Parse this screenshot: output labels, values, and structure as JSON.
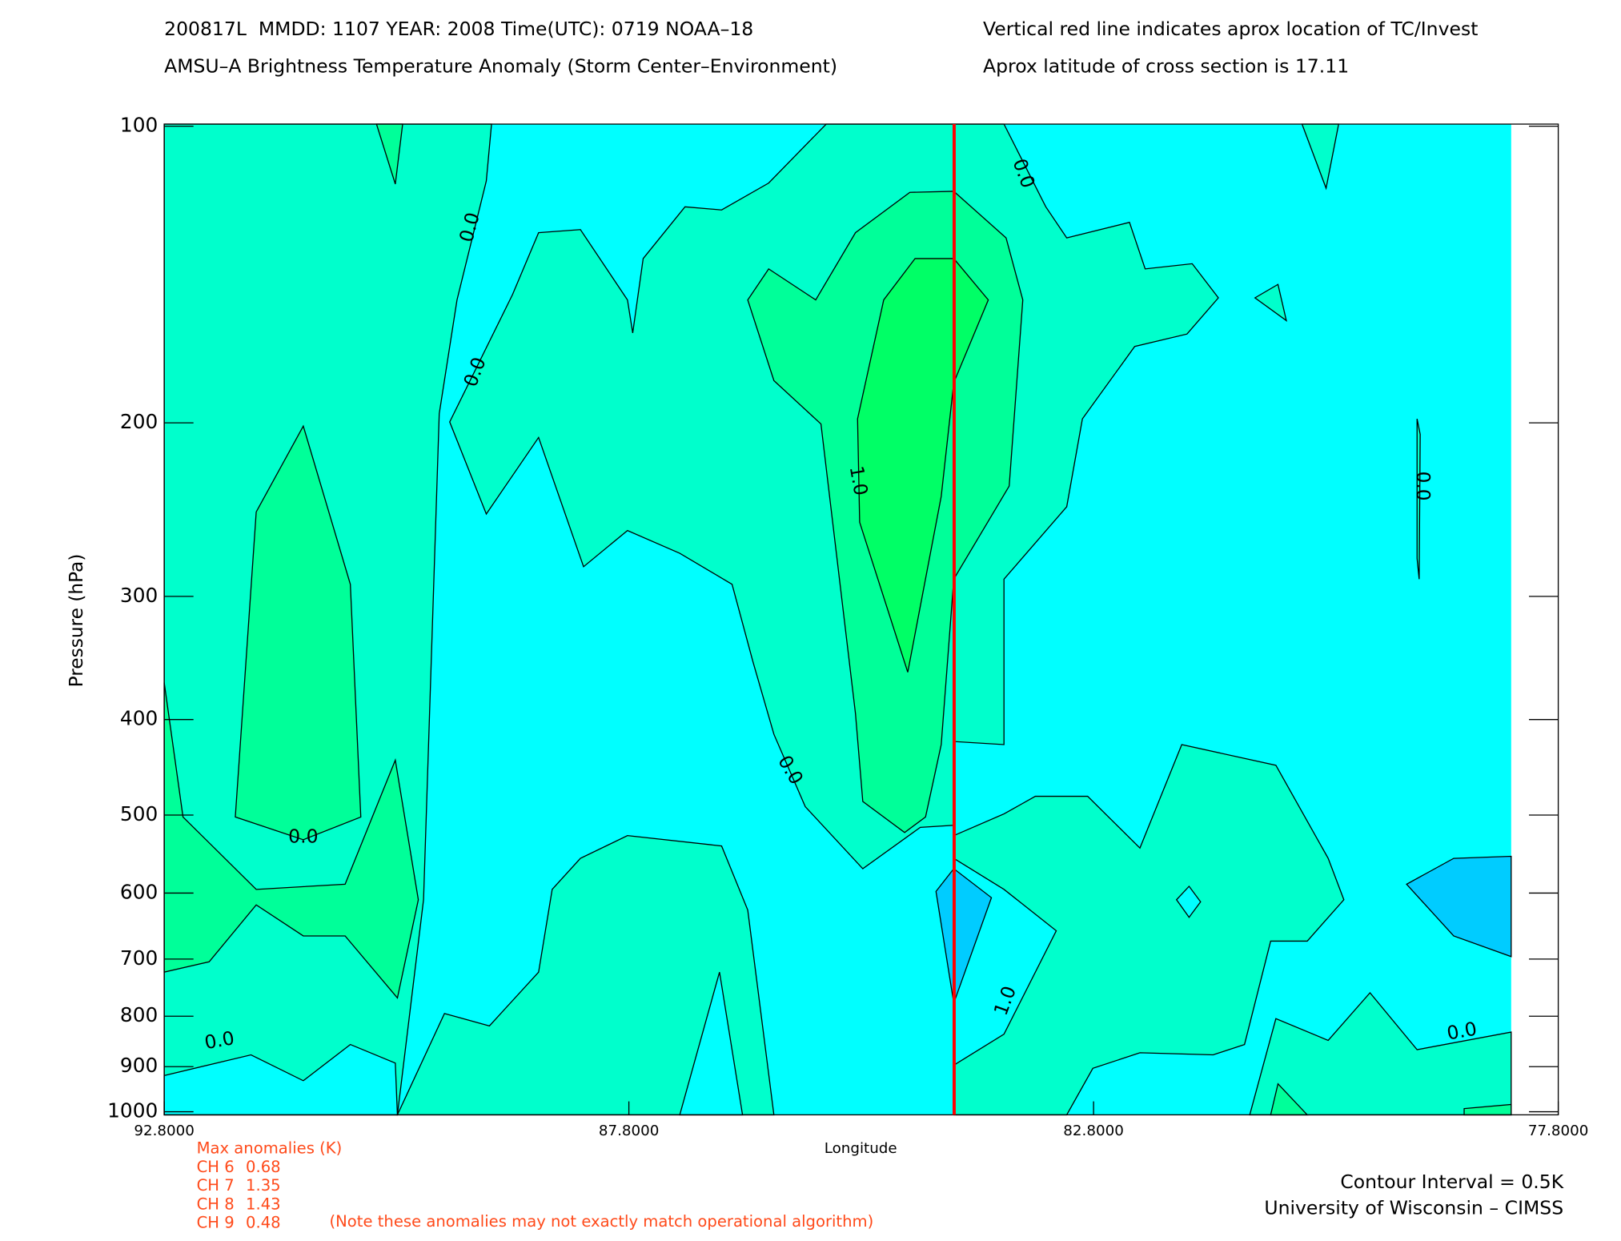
{
  "chart_data": {
    "type": "contour",
    "title": "200817L  MMDD: 1107 YEAR: 2008 Time(UTC): 0719 NOAA–18",
    "subtitle": "AMSU–A Brightness Temperature Anomaly (Storm Center–Environment)",
    "note_right_1": "Vertical red line indicates aprox location of TC/Invest",
    "note_right_2": "Aprox latitude of cross section is 17.11",
    "xlabel": "Longitude",
    "ylabel": "Pressure (hPa)",
    "xlim": [
      92.8,
      77.8
    ],
    "xticks": [
      {
        "value": 92.8,
        "label": "92.8000"
      },
      {
        "value": 87.8,
        "label": "87.8000"
      },
      {
        "value": 82.8,
        "label": "82.8000"
      },
      {
        "value": 77.8,
        "label": "77.8000"
      }
    ],
    "ylim": [
      100,
      1000
    ],
    "yticks": [
      100,
      200,
      300,
      400,
      500,
      600,
      700,
      800,
      900,
      1000
    ],
    "log_y": true,
    "marker_x": 84.3,
    "marker_color": "#ff0000",
    "contour_labels": [
      "0.0",
      "0.0",
      "0.0",
      "0.0",
      "0.0",
      "0.0",
      "0.0",
      "0.0",
      "1.0",
      "1.0"
    ],
    "contour_interval": "Contour Interval = 0.5K",
    "credit": "University of Wisconsin – CIMSS",
    "max_anomalies": {
      "title": "Max anomalies (K)",
      "channels": [
        {
          "label": "CH 6",
          "value": 0.68
        },
        {
          "label": "CH 7",
          "value": 1.35
        },
        {
          "label": "CH 8",
          "value": 1.43
        },
        {
          "label": "CH 9",
          "value": 0.48
        }
      ],
      "footnote": "(Note these anomalies may not exactly match operational algorithm)"
    }
  }
}
